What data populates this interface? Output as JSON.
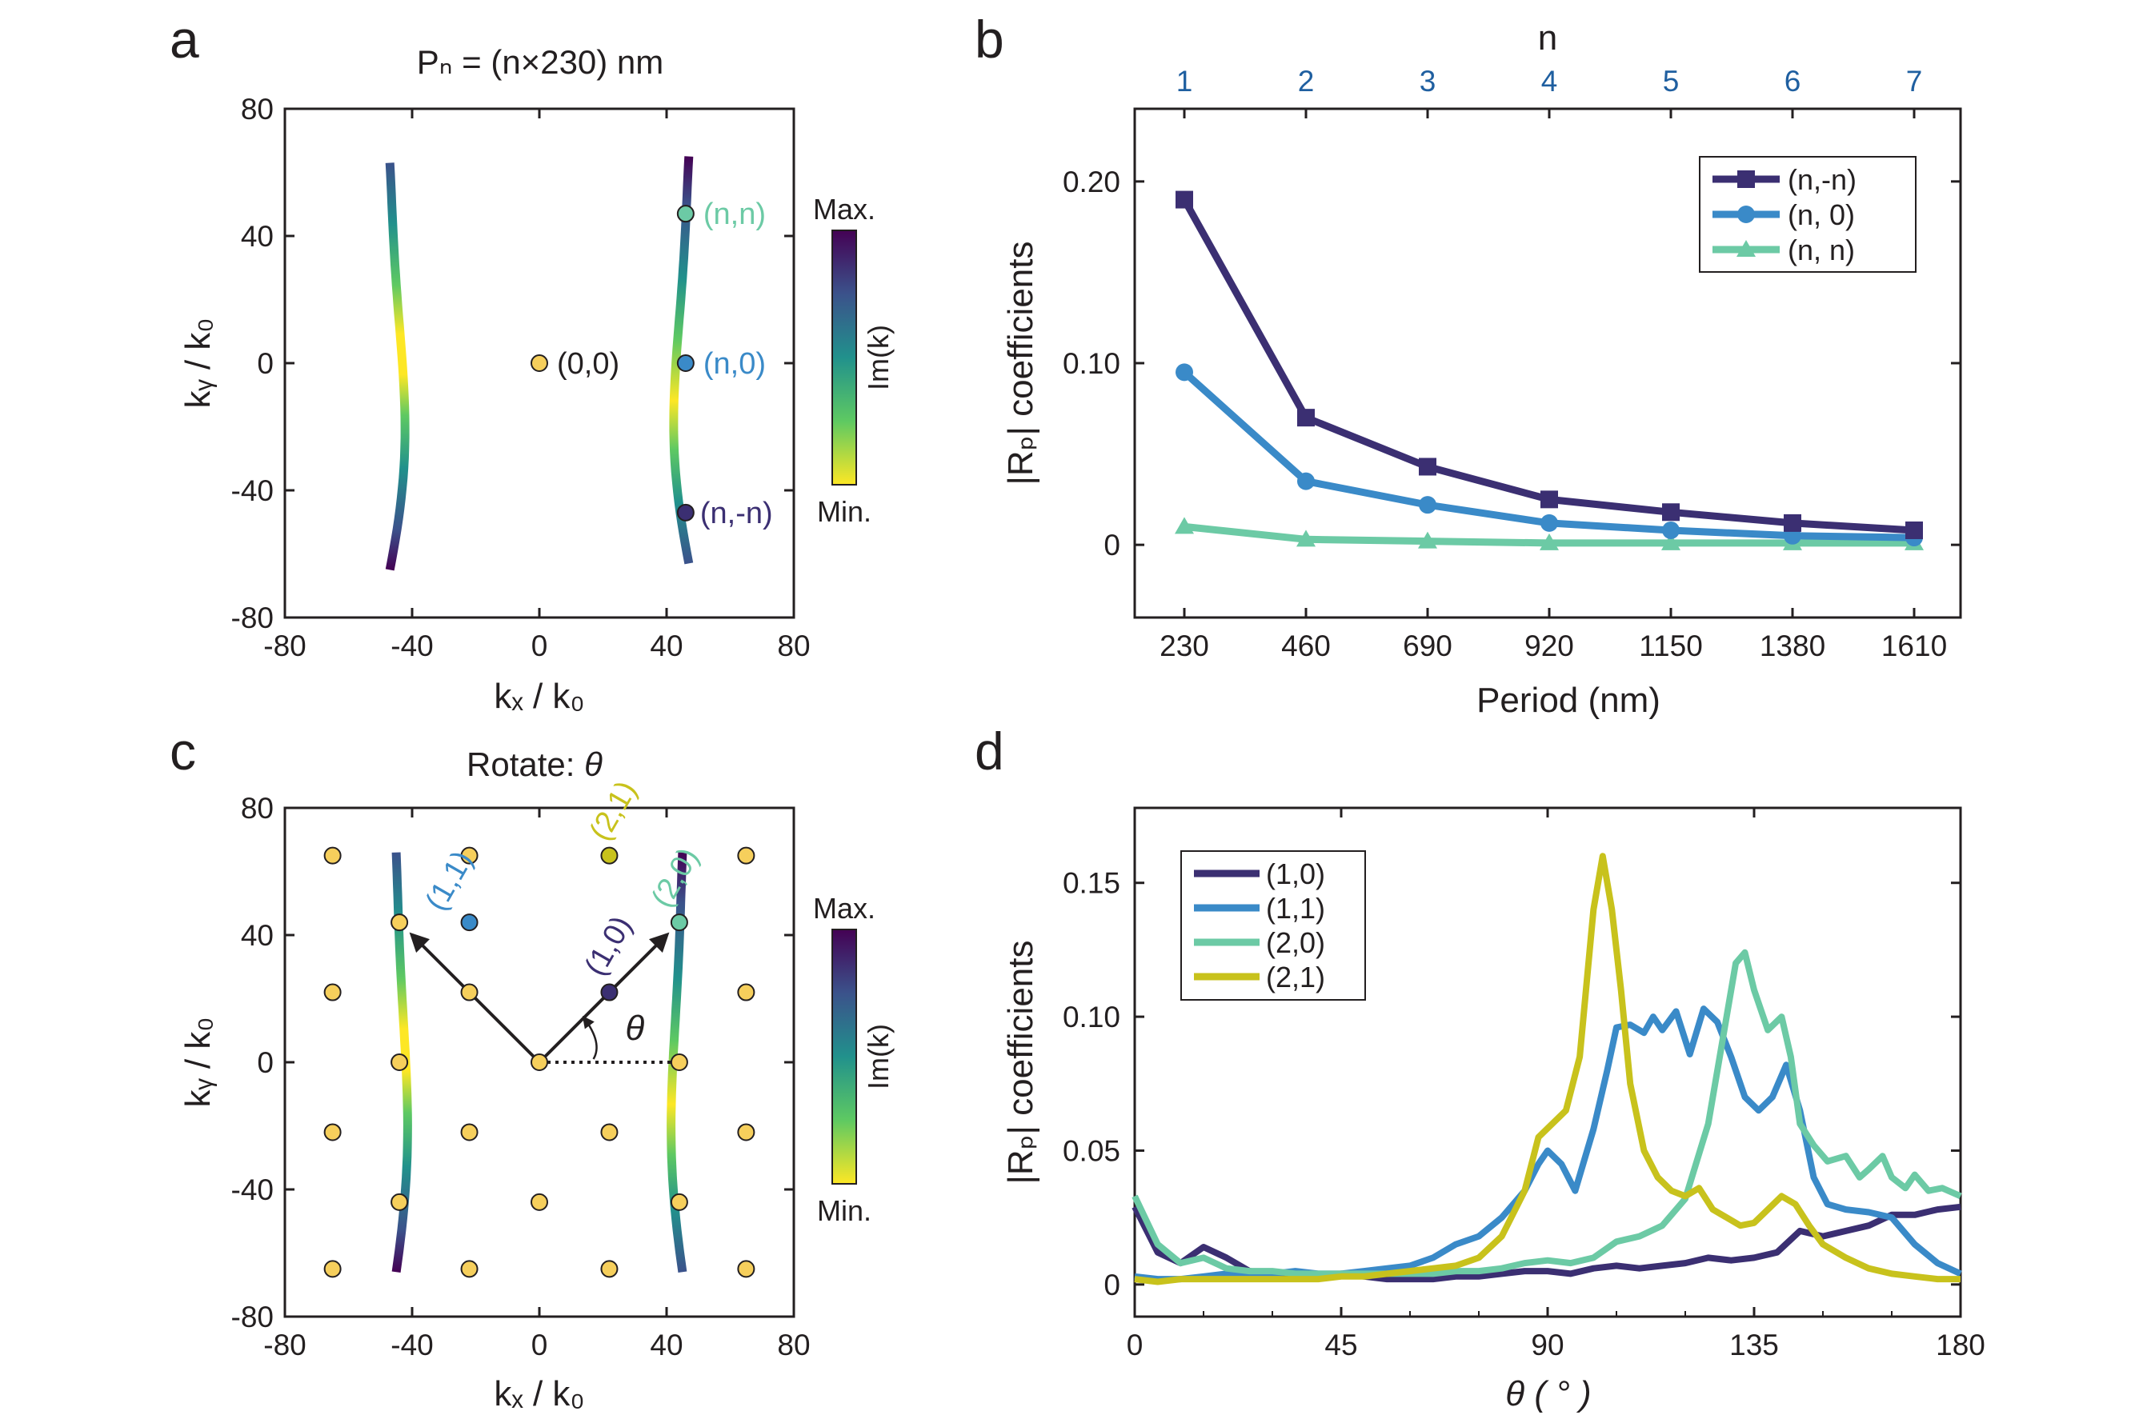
{
  "colors": {
    "dark": "#3b2f72",
    "blue": "#3a8ac8",
    "teal": "#6ccaa5",
    "olive": "#c8c21c",
    "dot": "#f6cf5c",
    "axis": "#231f20",
    "topticks": "#1f5fa0",
    "cmap": [
      "#fde725",
      "#5ec962",
      "#21918c",
      "#3b528b",
      "#440154"
    ]
  },
  "chart_data": [
    {
      "panel": "a",
      "type": "scatter",
      "title": "Pₙ = (n×230) nm",
      "xlabel": "kₓ / k₀",
      "ylabel": "kᵧ / k₀",
      "xlim": [
        -80,
        80
      ],
      "ylim": [
        -80,
        80
      ],
      "xticks": [
        "-80",
        "-40",
        "0",
        "40",
        "80"
      ],
      "yticks": [
        "-80",
        "-40",
        "0",
        "40",
        "80"
      ],
      "colorbar": {
        "label": "Im(k)",
        "max_label": "Max.",
        "min_label": "Min."
      },
      "curves": [
        {
          "name": "left-iso-curve",
          "ky_range": [
            -65,
            63
          ],
          "kx_center": -47,
          "bow": 4
        },
        {
          "name": "right-iso-curve",
          "ky_range": [
            -63,
            65
          ],
          "kx_center": 47,
          "bow": -4
        }
      ],
      "points": [
        {
          "label": "(0,0)",
          "x": 0,
          "y": 0,
          "color": "#f6cf5c",
          "label_color": "#231f20"
        },
        {
          "label": "(n,n)",
          "x": 46,
          "y": 47,
          "color": "#6ccaa5",
          "label_color": "#6ccaa5"
        },
        {
          "label": "(n,0)",
          "x": 46,
          "y": 0,
          "color": "#3a8ac8",
          "label_color": "#3a8ac8"
        },
        {
          "label": "(n,-n)",
          "x": 46,
          "y": -47,
          "color": "#3b2f72",
          "label_color": "#3b2f72"
        }
      ]
    },
    {
      "panel": "b",
      "type": "line",
      "xlabel": "Period (nm)",
      "ylabel": "|Rₚ| coefficients",
      "top_label": "n",
      "categories": [
        "230",
        "460",
        "690",
        "920",
        "1150",
        "1380",
        "1610"
      ],
      "top_categories": [
        "1",
        "2",
        "3",
        "4",
        "5",
        "6",
        "7"
      ],
      "yticks": [
        "0",
        "0.10",
        "0.20"
      ],
      "ytick_values": [
        0,
        0.1,
        0.2
      ],
      "ylim": [
        -0.04,
        0.24
      ],
      "legend_position": "top-right",
      "series": [
        {
          "name": "(n,-n)",
          "marker": "square",
          "color": "#3b2f72",
          "values": [
            0.19,
            0.07,
            0.043,
            0.025,
            0.018,
            0.012,
            0.008
          ]
        },
        {
          "name": "(n, 0)",
          "marker": "circle",
          "color": "#3a8ac8",
          "values": [
            0.095,
            0.035,
            0.022,
            0.012,
            0.008,
            0.005,
            0.004
          ]
        },
        {
          "name": "(n, n)",
          "marker": "triangle",
          "color": "#6ccaa5",
          "values": [
            0.01,
            0.003,
            0.002,
            0.001,
            0.001,
            0.001,
            0.001
          ]
        }
      ]
    },
    {
      "panel": "c",
      "type": "scatter",
      "title": "Rotate: ",
      "title_symbol": "θ",
      "xlabel": "kₓ / k₀",
      "ylabel": "kᵧ / k₀",
      "xlim": [
        -80,
        80
      ],
      "ylim": [
        -80,
        80
      ],
      "xticks": [
        "-80",
        "-40",
        "0",
        "40",
        "80"
      ],
      "yticks": [
        "-80",
        "-40",
        "0",
        "40",
        "80"
      ],
      "colorbar": {
        "label": "Im(k)",
        "max_label": "Max.",
        "min_label": "Min."
      },
      "angle_symbol": "θ",
      "lattice_points": [
        [
          -65,
          65
        ],
        [
          -44,
          44
        ],
        [
          -22,
          65
        ],
        [
          22,
          65
        ],
        [
          65,
          65
        ],
        [
          44,
          44
        ],
        [
          -65,
          22
        ],
        [
          -22,
          22
        ],
        [
          22,
          22
        ],
        [
          65,
          22
        ],
        [
          -44,
          0
        ],
        [
          0,
          0
        ],
        [
          44,
          0
        ],
        [
          -65,
          -22
        ],
        [
          -22,
          -22
        ],
        [
          22,
          -22
        ],
        [
          65,
          -22
        ],
        [
          -44,
          -44
        ],
        [
          0,
          -44
        ],
        [
          44,
          -44
        ],
        [
          -65,
          -65
        ],
        [
          -22,
          -65
        ],
        [
          22,
          -65
        ],
        [
          65,
          -65
        ],
        [
          -22,
          44
        ]
      ],
      "order_labels": [
        {
          "label": "(1,1)",
          "x": -22,
          "y": 44,
          "color": "#3a8ac8"
        },
        {
          "label": "(2,1)",
          "x": 22,
          "y": 65,
          "color": "#c8c21c"
        },
        {
          "label": "(2,0)",
          "x": 44,
          "y": 44,
          "color": "#6ccaa5"
        },
        {
          "label": "(1,0)",
          "x": 22,
          "y": 22,
          "color": "#3b2f72"
        }
      ],
      "curves": [
        {
          "name": "left-iso-curve",
          "ky_range": [
            -66,
            66
          ],
          "kx_center": -45,
          "bow": 3
        },
        {
          "name": "right-iso-curve",
          "ky_range": [
            -66,
            66
          ],
          "kx_center": 45,
          "bow": -3
        }
      ]
    },
    {
      "panel": "d",
      "type": "line",
      "xlabel": "θ ( ° )",
      "ylabel": "|Rₚ| coefficients",
      "xlim": [
        0,
        180
      ],
      "ylim": [
        -0.012,
        0.178
      ],
      "xticks": [
        "0",
        "45",
        "90",
        "135",
        "180"
      ],
      "xtick_values": [
        0,
        45,
        90,
        135,
        180
      ],
      "yticks": [
        "0",
        "0.05",
        "0.10",
        "0.15"
      ],
      "ytick_values": [
        0,
        0.05,
        0.1,
        0.15
      ],
      "legend_position": "top-left",
      "series": [
        {
          "name": "(1,0)",
          "color": "#3b2f72",
          "x": [
            0,
            5,
            10,
            15,
            20,
            25,
            30,
            35,
            40,
            45,
            50,
            55,
            60,
            65,
            70,
            75,
            80,
            85,
            90,
            95,
            100,
            105,
            110,
            115,
            120,
            125,
            130,
            135,
            140,
            145,
            150,
            155,
            160,
            165,
            170,
            175,
            180
          ],
          "values": [
            0.029,
            0.012,
            0.008,
            0.014,
            0.01,
            0.005,
            0.004,
            0.003,
            0.003,
            0.004,
            0.003,
            0.002,
            0.002,
            0.002,
            0.003,
            0.003,
            0.004,
            0.005,
            0.005,
            0.004,
            0.006,
            0.007,
            0.006,
            0.007,
            0.008,
            0.01,
            0.009,
            0.01,
            0.012,
            0.02,
            0.018,
            0.02,
            0.022,
            0.026,
            0.026,
            0.028,
            0.029
          ]
        },
        {
          "name": "(1,1)",
          "color": "#3a8ac8",
          "x": [
            0,
            5,
            10,
            15,
            20,
            25,
            30,
            35,
            40,
            45,
            50,
            55,
            60,
            65,
            70,
            75,
            80,
            85,
            88,
            90,
            93,
            96,
            100,
            103,
            105,
            108,
            111,
            113,
            115,
            118,
            121,
            124,
            127,
            130,
            133,
            136,
            139,
            142,
            145,
            148,
            151,
            155,
            160,
            165,
            170,
            175,
            180
          ],
          "values": [
            0.003,
            0.002,
            0.002,
            0.003,
            0.004,
            0.004,
            0.004,
            0.005,
            0.004,
            0.004,
            0.005,
            0.006,
            0.007,
            0.01,
            0.015,
            0.018,
            0.025,
            0.035,
            0.045,
            0.05,
            0.045,
            0.035,
            0.058,
            0.08,
            0.096,
            0.097,
            0.094,
            0.1,
            0.095,
            0.102,
            0.086,
            0.103,
            0.098,
            0.085,
            0.07,
            0.065,
            0.07,
            0.082,
            0.065,
            0.04,
            0.03,
            0.028,
            0.027,
            0.025,
            0.015,
            0.008,
            0.004
          ]
        },
        {
          "name": "(2,0)",
          "color": "#6ccaa5",
          "x": [
            0,
            5,
            10,
            15,
            20,
            25,
            30,
            35,
            40,
            45,
            50,
            55,
            60,
            65,
            70,
            75,
            80,
            85,
            90,
            95,
            100,
            105,
            110,
            115,
            120,
            125,
            128,
            131,
            133,
            135,
            138,
            141,
            143,
            145,
            148,
            151,
            155,
            158,
            160,
            163,
            165,
            168,
            170,
            173,
            176,
            180
          ],
          "values": [
            0.033,
            0.015,
            0.008,
            0.01,
            0.006,
            0.005,
            0.005,
            0.004,
            0.004,
            0.004,
            0.004,
            0.004,
            0.004,
            0.004,
            0.005,
            0.005,
            0.006,
            0.008,
            0.009,
            0.008,
            0.01,
            0.016,
            0.018,
            0.022,
            0.032,
            0.06,
            0.09,
            0.12,
            0.124,
            0.11,
            0.095,
            0.1,
            0.085,
            0.06,
            0.052,
            0.046,
            0.048,
            0.04,
            0.043,
            0.048,
            0.04,
            0.036,
            0.041,
            0.035,
            0.036,
            0.033
          ]
        },
        {
          "name": "(2,1)",
          "color": "#c8c21c",
          "x": [
            0,
            5,
            10,
            15,
            20,
            25,
            30,
            35,
            40,
            45,
            50,
            55,
            60,
            65,
            70,
            75,
            80,
            85,
            88,
            91,
            94,
            97,
            100,
            102,
            104,
            106,
            108,
            111,
            114,
            117,
            120,
            123,
            126,
            129,
            132,
            135,
            138,
            141,
            144,
            147,
            150,
            155,
            160,
            165,
            170,
            175,
            180
          ],
          "values": [
            0.002,
            0.001,
            0.002,
            0.002,
            0.002,
            0.002,
            0.002,
            0.002,
            0.002,
            0.003,
            0.003,
            0.004,
            0.005,
            0.006,
            0.007,
            0.01,
            0.018,
            0.035,
            0.055,
            0.06,
            0.065,
            0.085,
            0.14,
            0.16,
            0.14,
            0.11,
            0.075,
            0.05,
            0.04,
            0.035,
            0.033,
            0.036,
            0.028,
            0.025,
            0.022,
            0.023,
            0.028,
            0.033,
            0.03,
            0.022,
            0.015,
            0.01,
            0.006,
            0.004,
            0.003,
            0.002,
            0.002
          ]
        }
      ]
    }
  ],
  "panels": {
    "a": "a",
    "b": "b",
    "c": "c",
    "d": "d"
  }
}
